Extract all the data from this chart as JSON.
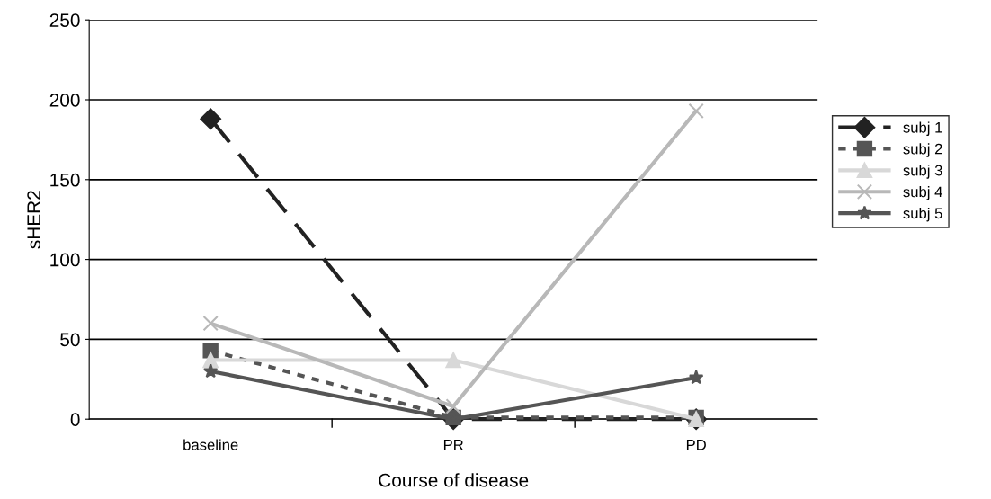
{
  "chart_data": {
    "type": "line",
    "xlabel": "Course of disease",
    "ylabel": "sHER2",
    "categories": [
      "baseline",
      "PR",
      "PD"
    ],
    "series": [
      {
        "name": "subj 1",
        "color": "#222222",
        "values": [
          188,
          0,
          0
        ],
        "marker": "diamond",
        "line_style": "dashed"
      },
      {
        "name": "subj 2",
        "color": "#555555",
        "values": [
          43,
          1,
          1
        ],
        "marker": "square",
        "line_style": "dotted"
      },
      {
        "name": "subj 3",
        "color": "#d8d8d8",
        "values": [
          37,
          37,
          0
        ],
        "marker": "triangle",
        "line_style": "solid"
      },
      {
        "name": "subj 4",
        "color": "#b8b8b8",
        "values": [
          60,
          8,
          193
        ],
        "marker": "cross",
        "line_style": "solid"
      },
      {
        "name": "subj 5",
        "color": "#555555",
        "values": [
          30,
          0,
          26
        ],
        "marker": "star",
        "line_style": "solid"
      }
    ],
    "ylim": [
      0,
      250
    ],
    "yticks": [
      0,
      50,
      100,
      150,
      200,
      250
    ],
    "grid": "y",
    "legend": "right"
  }
}
